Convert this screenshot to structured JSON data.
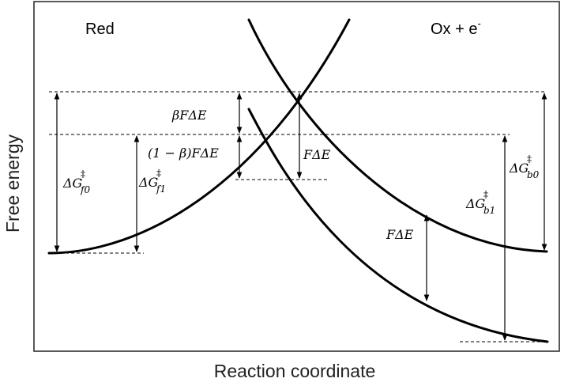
{
  "diagram": {
    "x_axis_label": "Reaction coordinate",
    "y_axis_label": "Free energy",
    "region_left_label": "Red",
    "region_right_label": {
      "main": "Ox + e",
      "sup": "-"
    },
    "annotations": {
      "beta_F_dE": "βFΔE",
      "one_minus_beta_F_dE": "(1 − β)FΔE",
      "F_dE_mid": "FΔE",
      "F_dE_right": "FΔE",
      "dG_f0": {
        "main": "ΔG",
        "sup": "‡",
        "sub": "f0"
      },
      "dG_f1": {
        "main": "ΔG",
        "sup": "‡",
        "sub": "f1"
      },
      "dG_b0": {
        "main": "ΔG",
        "sup": "‡",
        "sub": "b0"
      },
      "dG_b1": {
        "main": "ΔG",
        "sup": "‡",
        "sub": "b1"
      }
    }
  }
}
